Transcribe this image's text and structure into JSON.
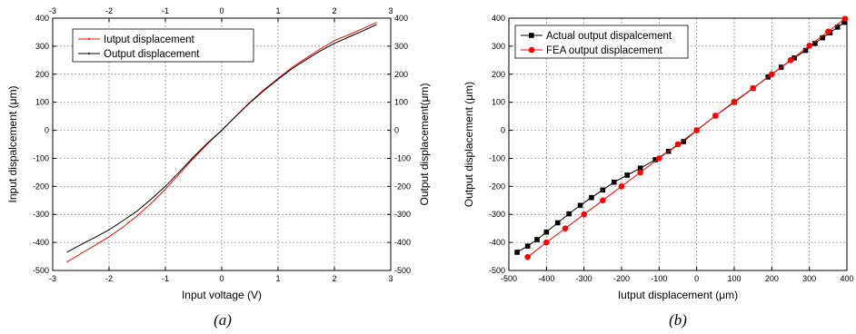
{
  "chart_data": [
    {
      "type": "line",
      "caption": "(a)",
      "xlabel": "Input voltage (V)",
      "ylabel": "Input dispalcement (μm)",
      "y2label": "Output displacement(μm)",
      "xlim": [
        -3,
        3
      ],
      "ylim": [
        -500,
        400
      ],
      "xticks": [
        "-3",
        "-2",
        "-1",
        "0",
        "1",
        "2",
        "3"
      ],
      "yticks": [
        "-500",
        "-400",
        "-300",
        "-200",
        "-100",
        "0",
        "100",
        "200",
        "300",
        "400"
      ],
      "grid": true,
      "legend_position": "top-left",
      "series": [
        {
          "name": "Iutput displacement",
          "color": "#ff0000",
          "marker": "none",
          "x": [
            -2.75,
            -2.5,
            -2.25,
            -2.0,
            -1.75,
            -1.5,
            -1.25,
            -1.0,
            -0.75,
            -0.5,
            -0.25,
            0.0,
            0.25,
            0.5,
            0.75,
            1.0,
            1.25,
            1.5,
            1.75,
            2.0,
            2.25,
            2.5,
            2.75
          ],
          "y": [
            -470,
            -440,
            -410,
            -380,
            -345,
            -305,
            -260,
            -210,
            -155,
            -100,
            -48,
            0,
            50,
            100,
            145,
            185,
            225,
            258,
            290,
            320,
            340,
            362,
            385
          ]
        },
        {
          "name": "Output displacement",
          "color": "#000000",
          "marker": "none",
          "x": [
            -2.75,
            -2.5,
            -2.25,
            -2.0,
            -1.75,
            -1.5,
            -1.25,
            -1.0,
            -0.75,
            -0.5,
            -0.25,
            0.0,
            0.25,
            0.5,
            0.75,
            1.0,
            1.25,
            1.5,
            1.75,
            2.0,
            2.25,
            2.5,
            2.75
          ],
          "y": [
            -435,
            -408,
            -382,
            -355,
            -322,
            -288,
            -245,
            -200,
            -148,
            -95,
            -45,
            0,
            50,
            98,
            142,
            182,
            220,
            252,
            283,
            310,
            332,
            354,
            377
          ]
        }
      ]
    },
    {
      "type": "line",
      "caption": "(b)",
      "xlabel": "Iutput displacement (μm)",
      "ylabel": "Output displacement (μm)",
      "xlim": [
        -500,
        400
      ],
      "ylim": [
        -500,
        400
      ],
      "xticks": [
        "-500",
        "-400",
        "-300",
        "-200",
        "-100",
        "0",
        "100",
        "200",
        "300",
        "400"
      ],
      "yticks": [
        "-500",
        "-400",
        "-300",
        "-200",
        "-100",
        "0",
        "100",
        "200",
        "300",
        "400"
      ],
      "grid": true,
      "legend_position": "top-left",
      "series": [
        {
          "name": "Actual output dispalcement",
          "color": "#000000",
          "marker": "square",
          "x": [
            -478,
            -450,
            -425,
            -400,
            -370,
            -340,
            -310,
            -280,
            -250,
            -220,
            -185,
            -150,
            -110,
            -75,
            -35,
            0,
            50,
            100,
            150,
            190,
            225,
            260,
            290,
            315,
            335,
            355,
            375,
            393
          ],
          "y": [
            -435,
            -413,
            -390,
            -363,
            -330,
            -298,
            -268,
            -240,
            -213,
            -185,
            -160,
            -135,
            -105,
            -75,
            -40,
            0,
            52,
            100,
            150,
            190,
            225,
            258,
            285,
            310,
            330,
            348,
            368,
            385
          ]
        },
        {
          "name": "FEA output displacement",
          "color": "#ff0000",
          "marker": "circle",
          "x": [
            -450,
            -400,
            -350,
            -300,
            -250,
            -200,
            -150,
            -100,
            -50,
            0,
            50,
            100,
            150,
            200,
            250,
            300,
            350,
            395
          ],
          "y": [
            -452,
            -400,
            -350,
            -300,
            -250,
            -200,
            -150,
            -100,
            -50,
            0,
            52,
            102,
            150,
            200,
            250,
            302,
            352,
            398
          ]
        }
      ]
    }
  ]
}
